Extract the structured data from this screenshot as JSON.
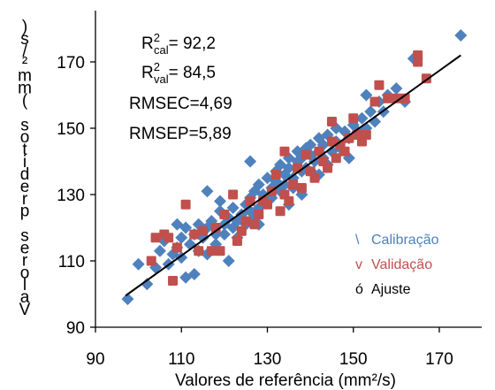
{
  "chart_data": {
    "type": "scatter",
    "xlabel": "Valores de referência (mm²/s)",
    "ylabel": "Valores preditos (mm²/s)",
    "xlim": [
      90,
      180
    ],
    "ylim": [
      90,
      180
    ],
    "x_ticks": [
      "90",
      "110",
      "130",
      "150",
      "170"
    ],
    "y_ticks": [
      "90",
      "110",
      "130",
      "150",
      "170"
    ],
    "stats": {
      "r2cal_base": "R",
      "r2cal_sup": "2",
      "r2cal_sub": "cal",
      "r2cal_value": "= 92,2",
      "r2val_base": "R",
      "r2val_sup": "2",
      "r2val_sub": "val",
      "r2val_value": "= 84,5",
      "rmsec": "RMSEC=4,69",
      "rmsep": "RMSEP=5,89"
    },
    "legend": {
      "placement": "bottom-right",
      "calibracao_marker": "\\",
      "calibracao_label": "Calibração",
      "validacao_marker": "v",
      "validacao_label": "Validação",
      "ajuste_marker": "ó",
      "ajuste_label": "Ajuste"
    },
    "colors": {
      "calibracao": "#4f81bd",
      "validacao": "#c0504d",
      "ajuste": "#000000"
    },
    "fit_line": {
      "x": [
        97,
        175
      ],
      "y": [
        99.5,
        172
      ]
    },
    "series": [
      {
        "name": "Calibração",
        "marker": "diamond",
        "points": [
          [
            97.5,
            98.5
          ],
          [
            100,
            109
          ],
          [
            102,
            103
          ],
          [
            104,
            108
          ],
          [
            105,
            113
          ],
          [
            106,
            116
          ],
          [
            107,
            109
          ],
          [
            108,
            112
          ],
          [
            109,
            114
          ],
          [
            110,
            111
          ],
          [
            110,
            117
          ],
          [
            111,
            105
          ],
          [
            111,
            120
          ],
          [
            112,
            115
          ],
          [
            113,
            118
          ],
          [
            114,
            113
          ],
          [
            114,
            121
          ],
          [
            115,
            117
          ],
          [
            116,
            120
          ],
          [
            116,
            112
          ],
          [
            117,
            122
          ],
          [
            118,
            118
          ],
          [
            118,
            115
          ],
          [
            119,
            125
          ],
          [
            120,
            121
          ],
          [
            120,
            118
          ],
          [
            121,
            123
          ],
          [
            122,
            120
          ],
          [
            122,
            126
          ],
          [
            123,
            117
          ],
          [
            123,
            122
          ],
          [
            124,
            124
          ],
          [
            125,
            127
          ],
          [
            125,
            121
          ],
          [
            126,
            125
          ],
          [
            126,
            129
          ],
          [
            127,
            123
          ],
          [
            127,
            131
          ],
          [
            128,
            126
          ],
          [
            128,
            133
          ],
          [
            129,
            130
          ],
          [
            130,
            128
          ],
          [
            130,
            135
          ],
          [
            131,
            132
          ],
          [
            131,
            129
          ],
          [
            132,
            137
          ],
          [
            132,
            134
          ],
          [
            133,
            131
          ],
          [
            133,
            139
          ],
          [
            134,
            136
          ],
          [
            134,
            133
          ],
          [
            135,
            138
          ],
          [
            135,
            141
          ],
          [
            136,
            135
          ],
          [
            136,
            132
          ],
          [
            137,
            140
          ],
          [
            137,
            143
          ],
          [
            138,
            137
          ],
          [
            138,
            141
          ],
          [
            139,
            144
          ],
          [
            139,
            138
          ],
          [
            140,
            142
          ],
          [
            140,
            145
          ],
          [
            141,
            140
          ],
          [
            141,
            136
          ],
          [
            142,
            143
          ],
          [
            142,
            147
          ],
          [
            143,
            141
          ],
          [
            143,
            145
          ],
          [
            144,
            148
          ],
          [
            144,
            139
          ],
          [
            145,
            143
          ],
          [
            146,
            146
          ],
          [
            146,
            150
          ],
          [
            147,
            144
          ],
          [
            148,
            149
          ],
          [
            149,
            147
          ],
          [
            150,
            151
          ],
          [
            151,
            149
          ],
          [
            152,
            153
          ],
          [
            153,
            150
          ],
          [
            154,
            155
          ],
          [
            155,
            152
          ],
          [
            156,
            158
          ],
          [
            157,
            155
          ],
          [
            158,
            160
          ],
          [
            160,
            162
          ],
          [
            162,
            158
          ],
          [
            164,
            171
          ],
          [
            175,
            178
          ],
          [
            116,
            131
          ],
          [
            121,
            110
          ],
          [
            119,
            128
          ],
          [
            128,
            121
          ],
          [
            135,
            127
          ],
          [
            142,
            136
          ],
          [
            126,
            140
          ],
          [
            138,
            130
          ],
          [
            149,
            141
          ],
          [
            153,
            160
          ],
          [
            109,
            121
          ],
          [
            113,
            106
          ]
        ]
      },
      {
        "name": "Validação",
        "marker": "square",
        "points": [
          [
            103,
            110
          ],
          [
            104,
            117
          ],
          [
            106,
            118
          ],
          [
            107,
            117
          ],
          [
            108,
            104
          ],
          [
            109,
            114
          ],
          [
            111,
            127
          ],
          [
            113,
            118
          ],
          [
            115,
            119
          ],
          [
            117,
            113
          ],
          [
            118,
            120
          ],
          [
            119,
            113
          ],
          [
            120,
            124
          ],
          [
            122,
            130
          ],
          [
            123,
            116
          ],
          [
            125,
            122
          ],
          [
            126,
            128
          ],
          [
            127,
            121
          ],
          [
            128,
            124
          ],
          [
            129,
            128
          ],
          [
            130,
            127
          ],
          [
            131,
            131
          ],
          [
            132,
            136
          ],
          [
            133,
            125
          ],
          [
            134,
            130
          ],
          [
            135,
            128
          ],
          [
            136,
            133
          ],
          [
            137,
            138
          ],
          [
            138,
            132
          ],
          [
            139,
            142
          ],
          [
            140,
            137
          ],
          [
            141,
            135
          ],
          [
            142,
            143
          ],
          [
            143,
            140
          ],
          [
            144,
            138
          ],
          [
            145,
            146
          ],
          [
            146,
            141
          ],
          [
            147,
            145
          ],
          [
            148,
            143
          ],
          [
            149,
            147
          ],
          [
            150,
            153
          ],
          [
            151,
            148
          ],
          [
            152,
            146
          ],
          [
            153,
            148
          ],
          [
            155,
            158
          ],
          [
            156,
            163
          ],
          [
            158,
            159
          ],
          [
            160,
            159
          ],
          [
            162,
            159
          ],
          [
            165,
            170
          ],
          [
            165,
            172
          ],
          [
            167,
            165
          ],
          [
            145,
            152
          ],
          [
            134,
            143
          ],
          [
            124,
            119
          ],
          [
            114,
            113
          ]
        ]
      }
    ]
  }
}
